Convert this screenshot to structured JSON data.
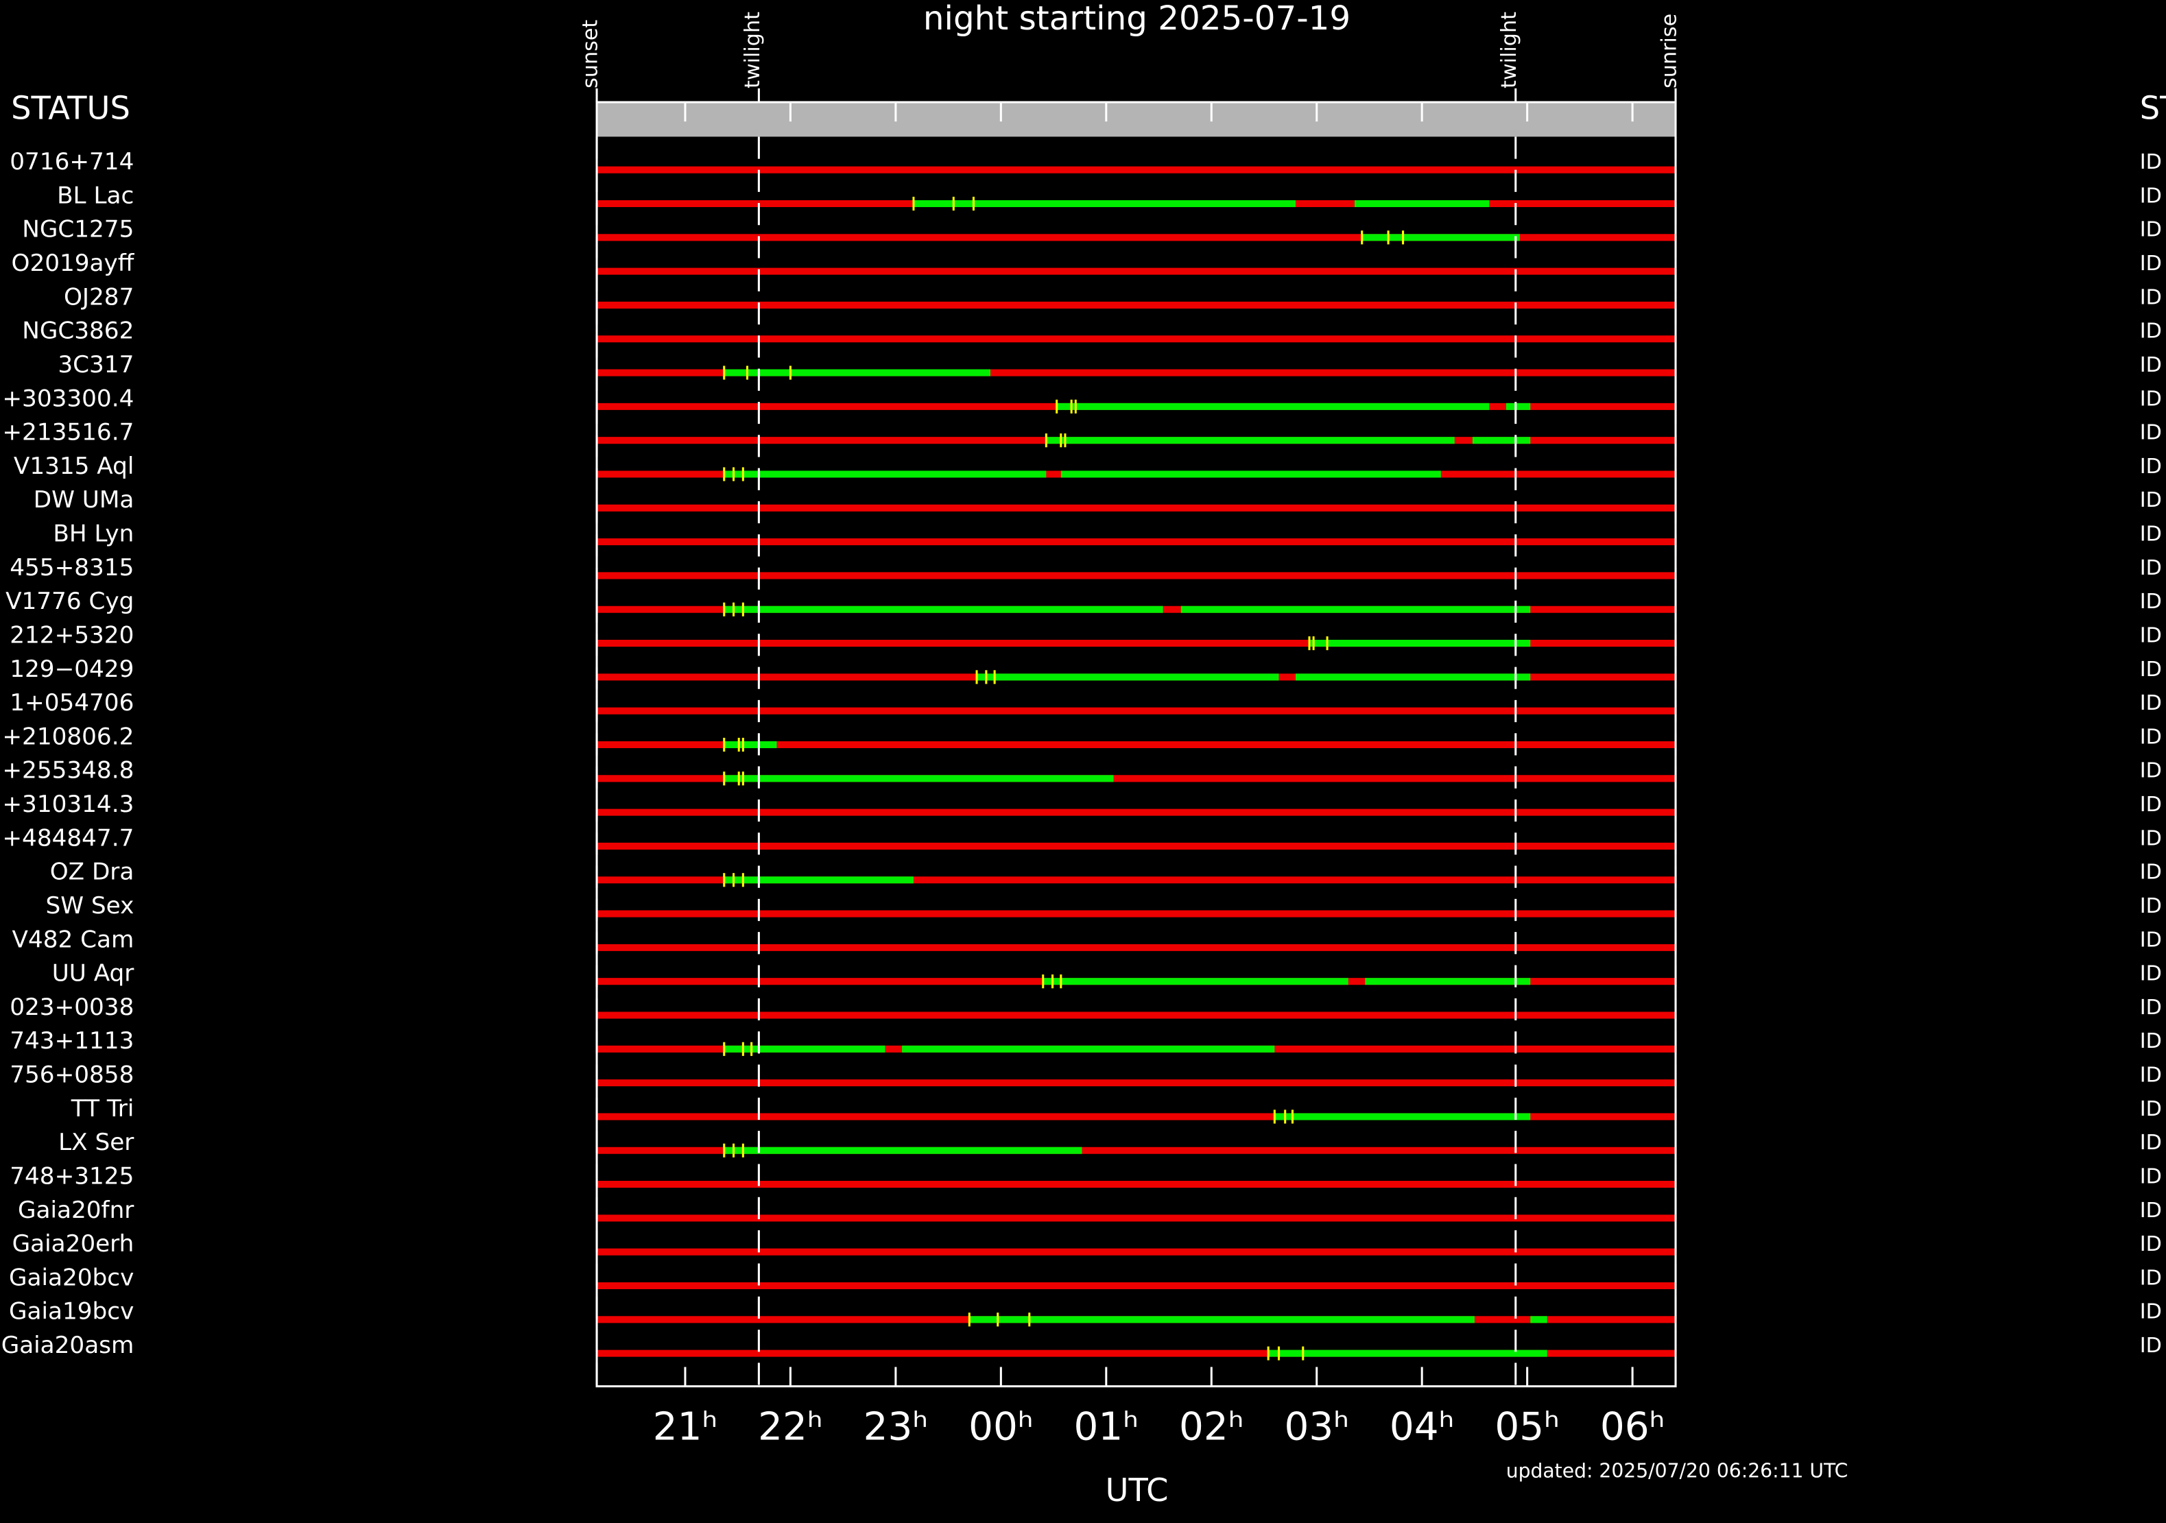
{
  "chart_data": {
    "type": "timeline",
    "title": "night starting 2025-07-19",
    "x_label": "UTC",
    "updated": "updated: 2025/07/20 06:26:11 UTC",
    "status_header": "STATUS",
    "status_header_right": "ST",
    "xlim": [
      20.16,
      30.41
    ],
    "xticks": [
      {
        "value": 21,
        "label": "21ʰ"
      },
      {
        "value": 22,
        "label": "22ʰ"
      },
      {
        "value": 23,
        "label": "23ʰ"
      },
      {
        "value": 24,
        "label": "00ʰ"
      },
      {
        "value": 25,
        "label": "01ʰ"
      },
      {
        "value": 26,
        "label": "02ʰ"
      },
      {
        "value": 27,
        "label": "03ʰ"
      },
      {
        "value": 28,
        "label": "04ʰ"
      },
      {
        "value": 29,
        "label": "05ʰ"
      },
      {
        "value": 30,
        "label": "06ʰ"
      }
    ],
    "events": [
      {
        "label": "sunset",
        "x": 20.16
      },
      {
        "label": "twilight",
        "x": 21.7
      },
      {
        "label": "twilight",
        "x": 28.89
      },
      {
        "label": "sunrise",
        "x": 30.41
      }
    ],
    "bar_color": "#ee0000",
    "window_color": "#00ee00",
    "mark_color": "#ffff00",
    "rows": [
      {
        "name": "0716+714",
        "status": "ID",
        "windows": [],
        "marks": []
      },
      {
        "name": "BL Lac",
        "status": "ID",
        "windows": [
          [
            23.17,
            26.8
          ],
          [
            27.36,
            28.64
          ]
        ],
        "marks": [
          23.17,
          23.55,
          23.74
        ]
      },
      {
        "name": "NGC1275",
        "status": "ID",
        "windows": [
          [
            27.43,
            28.93
          ]
        ],
        "marks": [
          27.43,
          27.68,
          27.82
        ]
      },
      {
        "name": "O2019ayff",
        "status": "ID",
        "windows": [],
        "marks": []
      },
      {
        "name": "OJ287",
        "status": "ID",
        "windows": [],
        "marks": []
      },
      {
        "name": "NGC3862",
        "status": "ID",
        "windows": [],
        "marks": []
      },
      {
        "name": "3C317",
        "status": "ID",
        "windows": [
          [
            21.37,
            23.9
          ]
        ],
        "marks": [
          21.37,
          21.59,
          22.0
        ]
      },
      {
        "name": "+303300.4",
        "status": "ID",
        "windows": [
          [
            24.53,
            28.64
          ],
          [
            28.8,
            29.03
          ]
        ],
        "marks": [
          24.53,
          24.67,
          24.71
        ]
      },
      {
        "name": "+213516.7",
        "status": "ID",
        "windows": [
          [
            24.43,
            28.31
          ],
          [
            28.48,
            29.03
          ]
        ],
        "marks": [
          24.43,
          24.57,
          24.61
        ]
      },
      {
        "name": "V1315 Aql",
        "status": "ID",
        "windows": [
          [
            21.37,
            24.43
          ],
          [
            24.57,
            28.18
          ]
        ],
        "marks": [
          21.37,
          21.46,
          21.55
        ]
      },
      {
        "name": "DW UMa",
        "status": "ID",
        "windows": [],
        "marks": []
      },
      {
        "name": "BH Lyn",
        "status": "ID",
        "windows": [],
        "marks": []
      },
      {
        "name": "455+8315",
        "status": "ID",
        "windows": [],
        "marks": []
      },
      {
        "name": "V1776 Cyg",
        "status": "ID",
        "windows": [
          [
            21.37,
            25.54
          ],
          [
            25.71,
            29.03
          ]
        ],
        "marks": [
          21.37,
          21.46,
          21.55
        ]
      },
      {
        "name": "212+5320",
        "status": "ID",
        "windows": [
          [
            26.93,
            29.03
          ]
        ],
        "marks": [
          26.93,
          26.97,
          27.1
        ]
      },
      {
        "name": "129−0429",
        "status": "ID",
        "windows": [
          [
            23.77,
            26.64
          ],
          [
            26.8,
            29.03
          ]
        ],
        "marks": [
          23.77,
          23.86,
          23.94
        ]
      },
      {
        "name": "1+054706",
        "status": "ID",
        "windows": [],
        "marks": []
      },
      {
        "name": "+210806.2",
        "status": "ID",
        "windows": [
          [
            21.37,
            21.87
          ]
        ],
        "marks": [
          21.37,
          21.51,
          21.55
        ]
      },
      {
        "name": "+255348.8",
        "status": "ID",
        "windows": [
          [
            21.37,
            25.07
          ]
        ],
        "marks": [
          21.37,
          21.51,
          21.55
        ]
      },
      {
        "name": "+310314.3",
        "status": "ID",
        "windows": [],
        "marks": []
      },
      {
        "name": "+484847.7",
        "status": "ID",
        "windows": [],
        "marks": []
      },
      {
        "name": "OZ Dra",
        "status": "ID",
        "windows": [
          [
            21.37,
            23.17
          ]
        ],
        "marks": [
          21.37,
          21.46,
          21.55
        ]
      },
      {
        "name": "SW Sex",
        "status": "ID",
        "windows": [],
        "marks": []
      },
      {
        "name": "V482 Cam",
        "status": "ID",
        "windows": [],
        "marks": []
      },
      {
        "name": "UU Aqr",
        "status": "ID",
        "windows": [
          [
            24.4,
            27.3
          ],
          [
            27.46,
            29.03
          ]
        ],
        "marks": [
          24.4,
          24.49,
          24.57
        ]
      },
      {
        "name": "023+0038",
        "status": "ID",
        "windows": [],
        "marks": []
      },
      {
        "name": "743+1113",
        "status": "ID",
        "windows": [
          [
            21.37,
            22.9
          ],
          [
            23.06,
            26.6
          ]
        ],
        "marks": [
          21.37,
          21.55,
          21.63
        ]
      },
      {
        "name": "756+0858",
        "status": "ID",
        "windows": [],
        "marks": []
      },
      {
        "name": "TT Tri",
        "status": "ID",
        "windows": [
          [
            26.6,
            29.03
          ]
        ],
        "marks": [
          26.6,
          26.7,
          26.77
        ]
      },
      {
        "name": "LX Ser",
        "status": "ID",
        "windows": [
          [
            21.37,
            24.77
          ]
        ],
        "marks": [
          21.37,
          21.46,
          21.55
        ]
      },
      {
        "name": "748+3125",
        "status": "ID",
        "windows": [],
        "marks": []
      },
      {
        "name": "Gaia20fnr",
        "status": "ID",
        "windows": [],
        "marks": []
      },
      {
        "name": "Gaia20erh",
        "status": "ID",
        "windows": [],
        "marks": []
      },
      {
        "name": "Gaia20bcv",
        "status": "ID",
        "windows": [],
        "marks": []
      },
      {
        "name": "Gaia19bcv",
        "status": "ID",
        "windows": [
          [
            23.7,
            28.5
          ],
          [
            29.03,
            29.19
          ]
        ],
        "marks": [
          23.7,
          23.97,
          24.27
        ]
      },
      {
        "name": "Gaia20asm",
        "status": "ID",
        "windows": [
          [
            26.54,
            29.19
          ]
        ],
        "marks": [
          26.54,
          26.64,
          26.87
        ]
      }
    ]
  }
}
